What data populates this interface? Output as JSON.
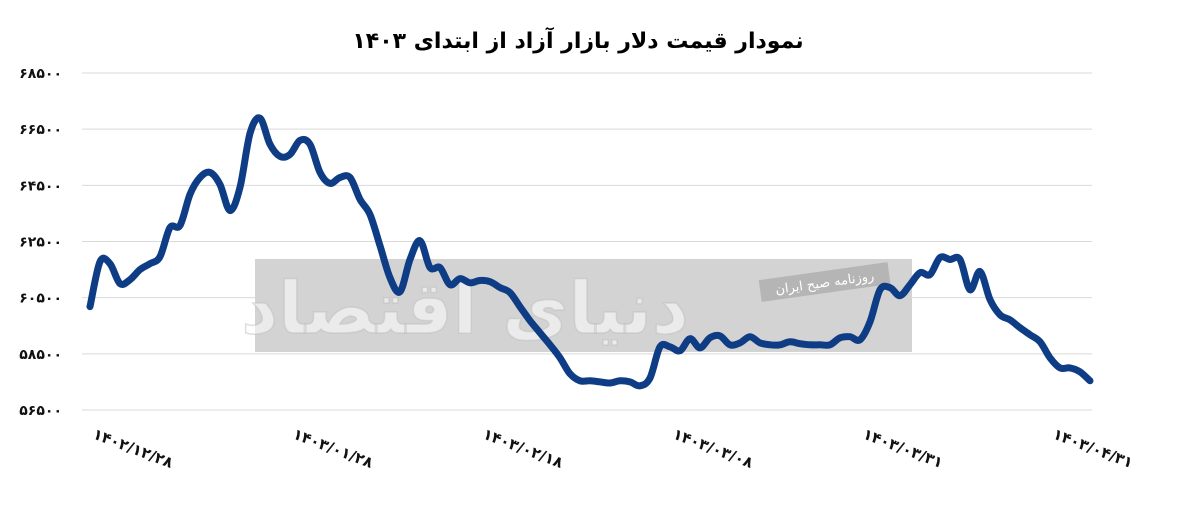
{
  "chart_data": {
    "type": "line",
    "title": "نمودار قیمت دلار بازار آزاد از ابتدای ۱۴۰۳",
    "xlabel": "",
    "ylabel": "",
    "ylim": [
      56500,
      68500
    ],
    "y_ticks": [
      {
        "value": 68500,
        "label": "۶۸۵۰۰"
      },
      {
        "value": 66500,
        "label": "۶۶۵۰۰"
      },
      {
        "value": 64500,
        "label": "۶۴۵۰۰"
      },
      {
        "value": 62500,
        "label": "۶۲۵۰۰"
      },
      {
        "value": 60500,
        "label": "۶۰۵۰۰"
      },
      {
        "value": 58500,
        "label": "۵۸۵۰۰"
      },
      {
        "value": 56500,
        "label": "۵۶۵۰۰"
      }
    ],
    "x_ticks": [
      {
        "index": 0,
        "label": "۱۴۰۲/۱۲/۲۸"
      },
      {
        "index": 20,
        "label": "۱۴۰۳/۰۱/۲۸"
      },
      {
        "index": 39,
        "label": "۱۴۰۳/۰۲/۱۸"
      },
      {
        "index": 58,
        "label": "۱۴۰۳/۰۳/۰۸"
      },
      {
        "index": 77,
        "label": "۱۴۰۳/۰۳/۳۱"
      },
      {
        "index": 96,
        "label": "۱۴۰۳/۰۴/۳۱"
      }
    ],
    "grid": true,
    "legend": "none",
    "series": [
      {
        "color": "#0f3d85",
        "values": [
          60180,
          61780,
          61710,
          61000,
          61140,
          61500,
          61710,
          61960,
          63000,
          63070,
          64180,
          64780,
          64960,
          64530,
          63600,
          64430,
          66350,
          66890,
          65960,
          65530,
          65600,
          66100,
          65960,
          64960,
          64570,
          64780,
          64780,
          64000,
          63460,
          62350,
          61210,
          60710,
          61860,
          62530,
          61570,
          61570,
          60960,
          61180,
          61030,
          61110,
          61070,
          60860,
          60680,
          60180,
          59680,
          59250,
          58820,
          58360,
          57790,
          57540,
          57540,
          57500,
          57460,
          57540,
          57500,
          57360,
          57640,
          58750,
          58750,
          58610,
          59040,
          58710,
          59070,
          59140,
          58820,
          58890,
          59110,
          58890,
          58820,
          58820,
          58930,
          58860,
          58820,
          58820,
          58820,
          59070,
          59110,
          59000,
          59640,
          60780,
          60860,
          60570,
          60960,
          61390,
          61320,
          61930,
          61860,
          61860,
          60780,
          61430,
          60430,
          59890,
          59710,
          59430,
          59180,
          58930,
          58360,
          58000,
          58000,
          57860,
          57540
        ]
      }
    ],
    "gridline_color": "#d9d9d9"
  },
  "watermark": {
    "brand": "دنیای اقتصاد",
    "tagline": "روزنامه صبح ایران",
    "box_color": "#d3d3d3"
  }
}
